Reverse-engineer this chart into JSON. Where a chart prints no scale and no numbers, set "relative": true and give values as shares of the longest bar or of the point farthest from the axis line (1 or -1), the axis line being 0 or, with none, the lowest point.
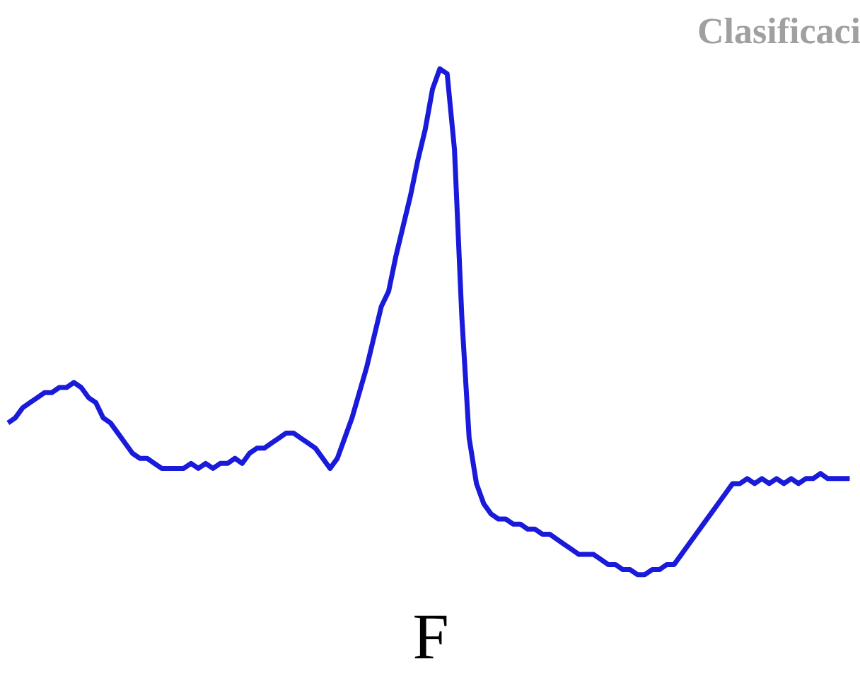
{
  "chart_data": {
    "type": "line",
    "title": "Clasificaci",
    "xlabel": "F",
    "relative": true,
    "categories": [
      null,
      null,
      null,
      null,
      null,
      null,
      null,
      null,
      null,
      null,
      null,
      null,
      null,
      null,
      null,
      null,
      null,
      null,
      null,
      null,
      null,
      null,
      null,
      null,
      null,
      null,
      null,
      null,
      null,
      null,
      null,
      null,
      null,
      null,
      null,
      null,
      null,
      null,
      null,
      null,
      null,
      null,
      null,
      null,
      null,
      null,
      null,
      null,
      null,
      null,
      null,
      null,
      null,
      null,
      null,
      null,
      null,
      null,
      null,
      null,
      null,
      null,
      null,
      null,
      null,
      null,
      null,
      null,
      null,
      null,
      null,
      null,
      null,
      null,
      null,
      null,
      null,
      null,
      null,
      null,
      null,
      null,
      null,
      null,
      null,
      null,
      null,
      null,
      null,
      null,
      null,
      null,
      null,
      null,
      null,
      null,
      null,
      null,
      null,
      null,
      null,
      null,
      null,
      null,
      null,
      null,
      null,
      null,
      null,
      null,
      null,
      null,
      null,
      null,
      null,
      null
    ],
    "series": [
      {
        "color": "#1a1adb",
        "values": [
          0.3,
          0.31,
          0.33,
          0.34,
          0.35,
          0.36,
          0.36,
          0.37,
          0.37,
          0.38,
          0.37,
          0.35,
          0.34,
          0.31,
          0.3,
          0.28,
          0.26,
          0.24,
          0.23,
          0.23,
          0.22,
          0.21,
          0.21,
          0.21,
          0.21,
          0.22,
          0.21,
          0.22,
          0.21,
          0.22,
          0.22,
          0.23,
          0.22,
          0.24,
          0.25,
          0.25,
          0.26,
          0.27,
          0.28,
          0.28,
          0.27,
          0.26,
          0.25,
          0.23,
          0.21,
          0.23,
          0.27,
          0.31,
          0.36,
          0.41,
          0.47,
          0.53,
          0.56,
          0.63,
          0.69,
          0.75,
          0.82,
          0.88,
          0.96,
          1,
          0.99,
          0.84,
          0.51,
          0.27,
          0.18,
          0.14,
          0.12,
          0.11,
          0.11,
          0.1,
          0.1,
          0.09,
          0.09,
          0.08,
          0.08,
          0.07,
          0.06,
          0.05,
          0.04,
          0.04,
          0.04,
          0.03,
          0.02,
          0.02,
          0.01,
          0.01,
          0,
          0,
          0.01,
          0.01,
          0.02,
          0.02,
          0.04,
          0.06,
          0.08,
          0.1,
          0.12,
          0.14,
          0.16,
          0.18,
          0.18,
          0.19,
          0.18,
          0.19,
          0.18,
          0.19,
          0.18,
          0.19,
          0.18,
          0.19,
          0.19,
          0.2,
          0.19,
          0.19,
          0.19,
          0.19
        ]
      }
    ],
    "grid": false
  }
}
